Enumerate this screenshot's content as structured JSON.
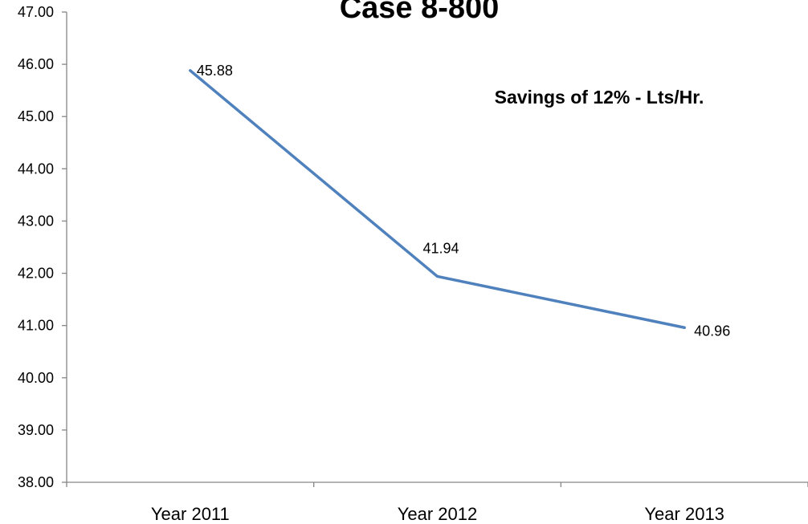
{
  "chart_data": {
    "type": "line",
    "title": "Case 8-800",
    "annotation": "Savings of 12% - Lts/Hr.",
    "categories": [
      "Year 2011",
      "Year 2012",
      "Year 2013"
    ],
    "series": [
      {
        "values": [
          45.88,
          41.94,
          40.96
        ],
        "color": "#4f81bd",
        "data_labels": [
          "45.88",
          "41.94",
          "40.96"
        ]
      }
    ],
    "ylim": [
      38.0,
      47.0
    ],
    "yticks": [
      38.0,
      39.0,
      40.0,
      41.0,
      42.0,
      43.0,
      44.0,
      45.0,
      46.0,
      47.0
    ],
    "ytick_labels": [
      "38.00",
      "39.00",
      "40.00",
      "41.00",
      "42.00",
      "43.00",
      "44.00",
      "45.00",
      "46.00",
      "47.00"
    ],
    "grid": false,
    "legend": "none"
  }
}
